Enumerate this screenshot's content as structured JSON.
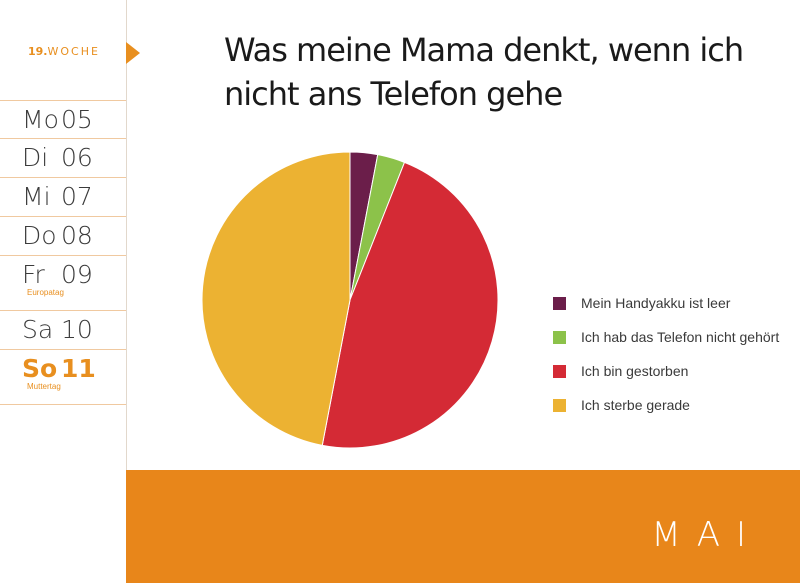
{
  "sidebar": {
    "week_number": "19.",
    "week_label": "WOCHE",
    "days": [
      {
        "name": "Mo",
        "num": "05",
        "note": ""
      },
      {
        "name": "Di",
        "num": "06",
        "note": ""
      },
      {
        "name": "Mi",
        "num": "07",
        "note": ""
      },
      {
        "name": "Do",
        "num": "08",
        "note": ""
      },
      {
        "name": "Fr",
        "num": "09",
        "note": "Europatag"
      },
      {
        "name": "Sa",
        "num": "10",
        "note": ""
      },
      {
        "name": "So",
        "num": "11",
        "note": "Muttertag"
      }
    ]
  },
  "month": "MAI",
  "colors": {
    "accent": "#e88f1f"
  },
  "chart_data": {
    "type": "pie",
    "title": "Was meine Mama denkt, wenn ich nicht ans Telefon gehe",
    "legend_position": "right",
    "slices": [
      {
        "label": "Mein Handyakku ist leer",
        "value": 3,
        "color": "#6b1e4a"
      },
      {
        "label": "Ich hab das Telefon nicht gehört",
        "value": 3,
        "color": "#8cc24a"
      },
      {
        "label": "Ich bin gestorben",
        "value": 47,
        "color": "#d42a35"
      },
      {
        "label": "Ich sterbe gerade",
        "value": 47,
        "color": "#ecb232"
      }
    ]
  }
}
